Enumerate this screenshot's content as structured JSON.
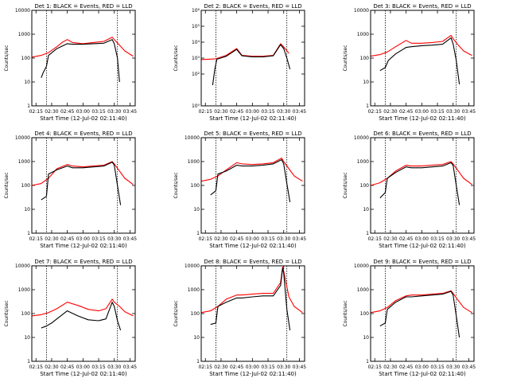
{
  "chart_data": [
    {
      "type": "line",
      "title": "Det 1: BLACK = Events, RED = LLD",
      "xlabel": "Start Time (12-Jul-02 02:11:40)",
      "ylabel": "Counts/sec",
      "yscale": "log",
      "ylim": [
        1,
        10000
      ],
      "xlim": [
        "02:11",
        "03:50"
      ],
      "y_tick_labels": [
        "1",
        "10",
        "100",
        "1000",
        "10000"
      ],
      "x_tick_labels": [
        "02:15",
        "02:30",
        "02:45",
        "03:00",
        "03:15",
        "03:30",
        "03:45"
      ],
      "vertical_markers": [
        "02:25",
        "03:33"
      ],
      "series": [
        {
          "color": "#ff0000",
          "x": [
            "02:11",
            "02:20",
            "02:27",
            "02:35",
            "02:40",
            "02:45",
            "02:50",
            "03:00",
            "03:10",
            "03:20",
            "03:28",
            "03:30",
            "03:35",
            "03:40",
            "03:48"
          ],
          "y": [
            110,
            130,
            170,
            300,
            450,
            600,
            450,
            400,
            450,
            500,
            750,
            600,
            350,
            200,
            120
          ]
        },
        {
          "color": "#000000",
          "x": [
            "02:20",
            "02:22",
            "02:25",
            "02:27",
            "02:35",
            "02:45",
            "02:50",
            "03:00",
            "03:10",
            "03:20",
            "03:28",
            "03:30",
            "03:33",
            "03:35"
          ],
          "y": [
            15,
            25,
            45,
            130,
            250,
            400,
            380,
            380,
            400,
            420,
            600,
            400,
            100,
            10
          ]
        }
      ]
    },
    {
      "type": "line",
      "title": "Det 2: BLACK = Events, RED = LLD",
      "xlabel": "Start Time (12-Jul-02 02:11:40)",
      "ylabel": "Counts/sec",
      "yscale": "log",
      "ylim": [
        1,
        1000000
      ],
      "xlim": [
        "02:11",
        "03:50"
      ],
      "y_tick_labels": [
        "10⁰",
        "10²",
        "10³",
        "10⁴",
        "10⁵",
        "10⁶"
      ],
      "x_tick_labels": [
        "02:15",
        "02:30",
        "02:45",
        "03:00",
        "03:15",
        "03:30",
        "03:45"
      ],
      "vertical_markers": [
        "02:25",
        "03:33"
      ],
      "series": [
        {
          "color": "#ff0000",
          "x": [
            "02:11",
            "02:25",
            "02:35",
            "02:45",
            "02:50",
            "03:00",
            "03:10",
            "03:20",
            "03:27",
            "03:30",
            "03:35"
          ],
          "y": [
            800,
            900,
            1500,
            4000,
            1500,
            1300,
            1300,
            1500,
            8000,
            5000,
            2000
          ]
        },
        {
          "color": "#000000",
          "x": [
            "02:22",
            "02:24",
            "02:26",
            "02:35",
            "02:45",
            "02:50",
            "03:00",
            "03:10",
            "03:20",
            "03:27",
            "03:30",
            "03:33",
            "03:36"
          ],
          "y": [
            20,
            200,
            850,
            1300,
            3500,
            1400,
            1200,
            1200,
            1400,
            7000,
            4000,
            1000,
            200
          ]
        }
      ]
    },
    {
      "type": "line",
      "title": "Det 3: BLACK = Events, RED = LLD",
      "xlabel": "Start Time (12-Jul-02 02:11:40)",
      "ylabel": "Counts/sec",
      "yscale": "log",
      "ylim": [
        1,
        10000
      ],
      "xlim": [
        "02:11",
        "03:50"
      ],
      "y_tick_labels": [
        "1",
        "10",
        "100",
        "1000",
        "10000"
      ],
      "x_tick_labels": [
        "02:15",
        "02:30",
        "02:45",
        "03:00",
        "03:15",
        "03:30",
        "03:45"
      ],
      "vertical_markers": [
        "02:25",
        "03:33"
      ],
      "series": [
        {
          "color": "#ff0000",
          "x": [
            "02:11",
            "02:20",
            "02:27",
            "02:35",
            "02:45",
            "02:50",
            "03:00",
            "03:10",
            "03:20",
            "03:28",
            "03:30",
            "03:35",
            "03:40",
            "03:48"
          ],
          "y": [
            120,
            140,
            180,
            300,
            550,
            420,
            420,
            450,
            500,
            900,
            650,
            350,
            200,
            130
          ]
        },
        {
          "color": "#000000",
          "x": [
            "02:20",
            "02:25",
            "02:28",
            "02:35",
            "02:45",
            "02:50",
            "03:00",
            "03:10",
            "03:20",
            "03:28",
            "03:30",
            "03:33",
            "03:36"
          ],
          "y": [
            30,
            40,
            80,
            150,
            280,
            300,
            330,
            350,
            380,
            700,
            400,
            80,
            8
          ]
        }
      ]
    },
    {
      "type": "line",
      "title": "Det 4: BLACK = Events, RED = LLD",
      "xlabel": "Start Time (12-Jul-02 02:11:40)",
      "ylabel": "Counts/sec",
      "yscale": "log",
      "ylim": [
        1,
        10000
      ],
      "xlim": [
        "02:11",
        "03:50"
      ],
      "y_tick_labels": [
        "1",
        "10",
        "100",
        "1000",
        "10000"
      ],
      "x_tick_labels": [
        "02:15",
        "02:30",
        "02:45",
        "03:00",
        "03:15",
        "03:30",
        "03:45"
      ],
      "vertical_markers": [
        "02:25",
        "03:33"
      ],
      "series": [
        {
          "color": "#ff0000",
          "x": [
            "02:11",
            "02:20",
            "02:27",
            "02:35",
            "02:45",
            "02:50",
            "03:00",
            "03:10",
            "03:20",
            "03:28",
            "03:30",
            "03:35",
            "03:40",
            "03:48"
          ],
          "y": [
            100,
            120,
            200,
            500,
            750,
            650,
            600,
            650,
            700,
            1000,
            800,
            400,
            200,
            110
          ]
        },
        {
          "color": "#000000",
          "x": [
            "02:20",
            "02:25",
            "02:27",
            "02:35",
            "02:45",
            "02:50",
            "03:00",
            "03:10",
            "03:20",
            "03:28",
            "03:30",
            "03:33",
            "03:36"
          ],
          "y": [
            25,
            35,
            300,
            450,
            650,
            550,
            550,
            600,
            650,
            950,
            700,
            100,
            15
          ]
        }
      ]
    },
    {
      "type": "line",
      "title": "Det 5: BLACK = Events, RED = LLD",
      "xlabel": "Start Time (12-Jul-02 02:11:40)",
      "ylabel": "Counts/sec",
      "yscale": "log",
      "ylim": [
        1,
        10000
      ],
      "xlim": [
        "02:11",
        "03:50"
      ],
      "y_tick_labels": [
        "1",
        "10",
        "100",
        "1000",
        "10000"
      ],
      "x_tick_labels": [
        "02:15",
        "02:30",
        "02:45",
        "03:00",
        "03:15",
        "03:30",
        "03:45"
      ],
      "vertical_markers": [
        "02:25",
        "03:33"
      ],
      "series": [
        {
          "color": "#ff0000",
          "x": [
            "02:11",
            "02:20",
            "02:27",
            "02:35",
            "02:45",
            "02:50",
            "03:00",
            "03:10",
            "03:20",
            "03:28",
            "03:30",
            "03:35",
            "03:40",
            "03:48"
          ],
          "y": [
            150,
            180,
            250,
            450,
            900,
            800,
            750,
            800,
            900,
            1400,
            1000,
            500,
            250,
            150
          ]
        },
        {
          "color": "#000000",
          "x": [
            "02:20",
            "02:25",
            "02:27",
            "02:35",
            "02:45",
            "02:50",
            "03:00",
            "03:10",
            "03:20",
            "03:28",
            "03:30",
            "03:33",
            "03:36"
          ],
          "y": [
            40,
            60,
            300,
            400,
            700,
            650,
            650,
            700,
            800,
            1200,
            800,
            120,
            20
          ]
        }
      ]
    },
    {
      "type": "line",
      "title": "Det 6: BLACK = Events, RED = LLD",
      "xlabel": "Start Time (12-Jul-02 02:11:40)",
      "ylabel": "Counts/sec",
      "yscale": "log",
      "ylim": [
        1,
        10000
      ],
      "xlim": [
        "02:11",
        "03:50"
      ],
      "y_tick_labels": [
        "1",
        "10",
        "100",
        "1000",
        "10000"
      ],
      "x_tick_labels": [
        "02:15",
        "02:30",
        "02:45",
        "03:00",
        "03:15",
        "03:30",
        "03:45"
      ],
      "vertical_markers": [
        "02:25",
        "03:33"
      ],
      "series": [
        {
          "color": "#ff0000",
          "x": [
            "02:11",
            "02:20",
            "02:27",
            "02:35",
            "02:45",
            "02:50",
            "03:00",
            "03:10",
            "03:20",
            "03:28",
            "03:30",
            "03:35",
            "03:40",
            "03:48"
          ],
          "y": [
            100,
            130,
            200,
            400,
            700,
            650,
            650,
            700,
            750,
            1000,
            800,
            400,
            200,
            110
          ]
        },
        {
          "color": "#000000",
          "x": [
            "02:20",
            "02:25",
            "02:27",
            "02:35",
            "02:45",
            "02:50",
            "03:00",
            "03:10",
            "03:20",
            "03:28",
            "03:30",
            "03:33",
            "03:36"
          ],
          "y": [
            30,
            50,
            200,
            350,
            600,
            550,
            550,
            600,
            650,
            900,
            700,
            100,
            15
          ]
        }
      ]
    },
    {
      "type": "line",
      "title": "Det 7: BLACK = Events, RED = LLD",
      "xlabel": "Start Time (12-Jul-02 02:11:40)",
      "ylabel": "Counts/sec",
      "yscale": "log",
      "ylim": [
        1,
        10000
      ],
      "xlim": [
        "02:11",
        "03:50"
      ],
      "y_tick_labels": [
        "1",
        "10",
        "100",
        "1000",
        "10000"
      ],
      "x_tick_labels": [
        "02:15",
        "02:30",
        "02:45",
        "03:00",
        "03:15",
        "03:30",
        "03:45"
      ],
      "vertical_markers": [
        "02:25",
        "03:33"
      ],
      "series": [
        {
          "color": "#ff0000",
          "x": [
            "02:11",
            "02:20",
            "02:27",
            "02:35",
            "02:45",
            "02:55",
            "03:05",
            "03:15",
            "03:22",
            "03:28",
            "03:30",
            "03:35",
            "03:40",
            "03:48"
          ],
          "y": [
            80,
            90,
            110,
            160,
            300,
            220,
            150,
            130,
            160,
            400,
            300,
            200,
            120,
            80
          ]
        },
        {
          "color": "#000000",
          "x": [
            "02:20",
            "02:25",
            "02:30",
            "02:35",
            "02:45",
            "02:55",
            "03:05",
            "03:15",
            "03:22",
            "03:28",
            "03:30",
            "03:33",
            "03:36"
          ],
          "y": [
            25,
            30,
            40,
            60,
            130,
            80,
            55,
            50,
            60,
            300,
            200,
            50,
            20
          ]
        }
      ]
    },
    {
      "type": "line",
      "title": "Det 8: BLACK = Events, RED = LLD",
      "xlabel": "Start Time (12-Jul-02 02:11:40)",
      "ylabel": "Counts/sec",
      "yscale": "log",
      "ylim": [
        1,
        10000
      ],
      "xlim": [
        "02:11",
        "03:50"
      ],
      "y_tick_labels": [
        "1",
        "10",
        "100",
        "1000",
        "10000"
      ],
      "x_tick_labels": [
        "02:15",
        "02:30",
        "02:45",
        "03:00",
        "03:15",
        "03:30",
        "03:45"
      ],
      "vertical_markers": [
        "02:25",
        "03:33"
      ],
      "series": [
        {
          "color": "#ff0000",
          "x": [
            "02:11",
            "02:20",
            "02:27",
            "02:35",
            "02:45",
            "02:50",
            "03:00",
            "03:10",
            "03:20",
            "03:27",
            "03:29",
            "03:30",
            "03:35",
            "03:40",
            "03:48"
          ],
          "y": [
            110,
            130,
            200,
            400,
            600,
            600,
            650,
            700,
            700,
            2000,
            9000,
            6000,
            500,
            200,
            110
          ]
        },
        {
          "color": "#000000",
          "x": [
            "02:20",
            "02:25",
            "02:27",
            "02:35",
            "02:45",
            "02:50",
            "03:00",
            "03:10",
            "03:20",
            "03:27",
            "03:29",
            "03:30",
            "03:33",
            "03:36"
          ],
          "y": [
            35,
            40,
            200,
            300,
            450,
            450,
            500,
            550,
            550,
            1500,
            8000,
            5000,
            150,
            20
          ]
        }
      ]
    },
    {
      "type": "line",
      "title": "Det 9: BLACK = Events, RED = LLD",
      "xlabel": "Start Time (12-Jul-02 02:11:40)",
      "ylabel": "Counts/sec",
      "yscale": "log",
      "ylim": [
        1,
        10000
      ],
      "xlim": [
        "02:11",
        "03:50"
      ],
      "y_tick_labels": [
        "1",
        "10",
        "100",
        "1000",
        "10000"
      ],
      "x_tick_labels": [
        "02:15",
        "02:30",
        "02:45",
        "03:00",
        "03:15",
        "03:30",
        "03:45"
      ],
      "vertical_markers": [
        "02:25",
        "03:33"
      ],
      "series": [
        {
          "color": "#ff0000",
          "x": [
            "02:11",
            "02:20",
            "02:27",
            "02:35",
            "02:45",
            "02:50",
            "03:00",
            "03:10",
            "03:20",
            "03:28",
            "03:30",
            "03:35",
            "03:40",
            "03:48"
          ],
          "y": [
            110,
            130,
            180,
            350,
            550,
            600,
            600,
            650,
            700,
            900,
            700,
            350,
            180,
            110
          ]
        },
        {
          "color": "#000000",
          "x": [
            "02:20",
            "02:25",
            "02:27",
            "02:35",
            "02:45",
            "02:50",
            "03:00",
            "03:10",
            "03:20",
            "03:28",
            "03:30",
            "03:33",
            "03:36"
          ],
          "y": [
            30,
            40,
            150,
            300,
            500,
            500,
            550,
            600,
            650,
            850,
            600,
            80,
            10
          ]
        }
      ]
    }
  ]
}
